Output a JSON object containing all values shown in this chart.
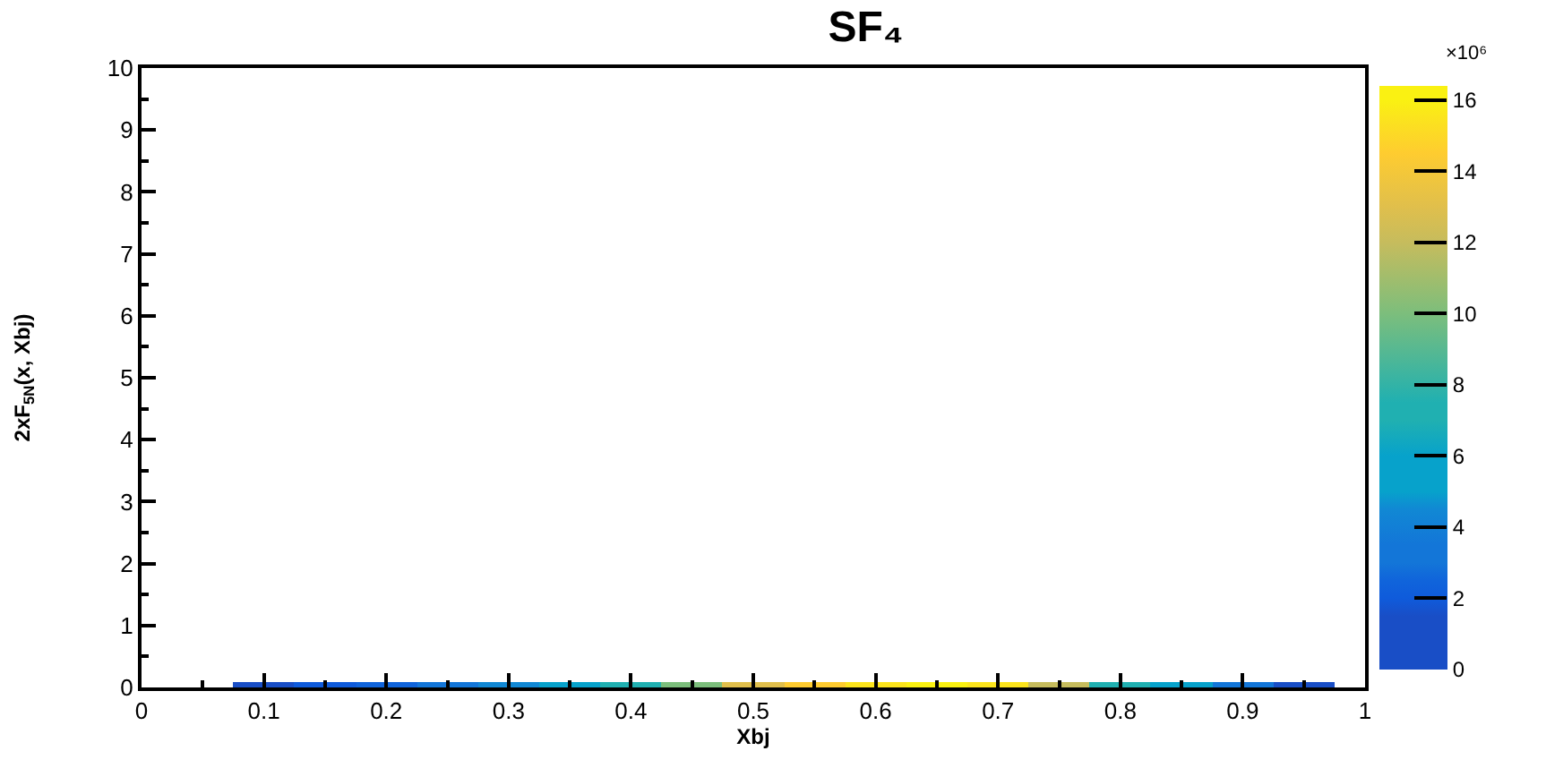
{
  "chart_data": {
    "type": "bar",
    "title": "SF₄",
    "xlabel": "Xbj",
    "ylabel": "2xF$_{5N}$(x, Xbj)",
    "x": [
      0.1,
      0.15,
      0.2,
      0.25,
      0.3,
      0.35,
      0.4,
      0.45,
      0.5,
      0.55,
      0.6,
      0.65,
      0.7,
      0.75,
      0.8,
      0.85,
      0.9,
      0.95
    ],
    "values": [
      0.1,
      0.1,
      0.1,
      0.1,
      0.1,
      0.1,
      0.1,
      0.1,
      0.1,
      0.1,
      0.1,
      0.1,
      0.1,
      0.1,
      0.1,
      0.1,
      0.1,
      0.1
    ],
    "cvalues": [
      1.5,
      2,
      2.5,
      3.5,
      4.5,
      6,
      7.5,
      10,
      13,
      14.5,
      15.5,
      16,
      15.5,
      12,
      7,
      5,
      3,
      1.5
    ],
    "colors": [
      "#194ec6",
      "#0f5bdb",
      "#1064db",
      "#1376d8",
      "#1188d4",
      "#07a2cb",
      "#20b0b1",
      "#7cbe7c",
      "#e0bf4c",
      "#fecc30",
      "#fbe41d",
      "#faf112",
      "#fbe41d",
      "#c6bc5d",
      "#20b0b1",
      "#07a2cb",
      "#1376d8",
      "#194ec6"
    ],
    "clim": [
      0,
      16.4
    ],
    "cticks": [
      0,
      2,
      4,
      6,
      8,
      10,
      12,
      14,
      16
    ],
    "xlim": [
      0,
      1
    ],
    "xticks": [
      0,
      0.1,
      0.2,
      0.3,
      0.4,
      0.5,
      0.6,
      0.7,
      0.8,
      0.9,
      1
    ],
    "ylim": [
      0,
      10
    ],
    "yticks": [
      0,
      1,
      2,
      3,
      4,
      5,
      6,
      7,
      8,
      9,
      10
    ],
    "annotations": [
      "×10⁶"
    ]
  }
}
